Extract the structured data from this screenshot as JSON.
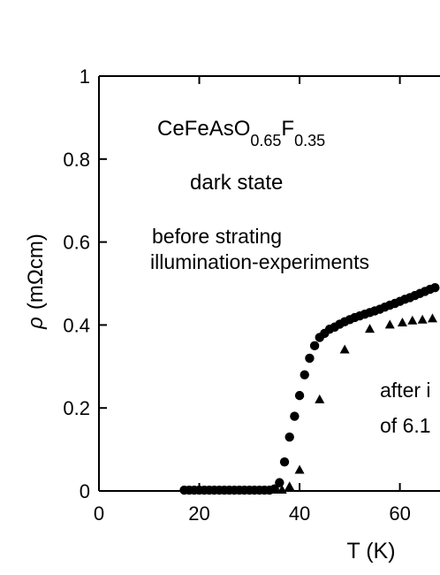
{
  "chart_data": {
    "type": "scatter",
    "xlabel": "T (K)",
    "ylabel_symbol": "ρ",
    "ylabel_unit": "(mΩcm)",
    "xlim": [
      0,
      68
    ],
    "ylim": [
      0,
      1
    ],
    "x_ticks": [
      0,
      20,
      40,
      60
    ],
    "x_tick_labels": [
      "0",
      "20",
      "40",
      "60"
    ],
    "y_ticks": [
      0,
      0.2,
      0.4,
      0.6,
      0.8,
      1
    ],
    "y_tick_labels": [
      "0",
      "0.2",
      "0.4",
      "0.6",
      "0.8",
      "1"
    ],
    "grid": false,
    "annotations": {
      "compound_base": "CeFeAsO",
      "compound_sub1": "0.65",
      "compound_f": "F",
      "compound_sub2": "0.35",
      "state": "dark state",
      "before_line1": "before strating",
      "before_line2": "illumination-experiments",
      "after_line1": "after i",
      "after_line2": "of  6.1"
    },
    "series": [
      {
        "marker": "circle",
        "x": [
          17,
          18,
          19,
          20,
          21,
          22,
          23,
          24,
          25,
          26,
          27,
          28,
          29,
          30,
          31,
          32,
          33,
          34,
          35,
          36,
          37,
          38,
          39,
          40,
          41,
          42,
          43,
          44,
          45,
          46,
          47,
          48,
          49,
          50,
          51,
          52,
          53,
          54,
          55,
          56,
          57,
          58,
          59,
          60,
          61,
          62,
          63,
          64,
          65,
          66,
          67
        ],
        "y": [
          0.002,
          0.002,
          0.002,
          0.002,
          0.002,
          0.002,
          0.002,
          0.002,
          0.002,
          0.002,
          0.002,
          0.002,
          0.002,
          0.002,
          0.002,
          0.002,
          0.002,
          0.002,
          0.005,
          0.02,
          0.07,
          0.13,
          0.18,
          0.23,
          0.28,
          0.32,
          0.35,
          0.37,
          0.38,
          0.39,
          0.395,
          0.402,
          0.408,
          0.413,
          0.418,
          0.422,
          0.426,
          0.43,
          0.434,
          0.438,
          0.443,
          0.448,
          0.452,
          0.457,
          0.462,
          0.466,
          0.471,
          0.476,
          0.481,
          0.486,
          0.49
        ]
      },
      {
        "marker": "triangle",
        "x": [
          35,
          36.5,
          38,
          40,
          44,
          49,
          54,
          58,
          60.5,
          62.5,
          64.5,
          66.5
        ],
        "y": [
          0.002,
          0.002,
          0.01,
          0.05,
          0.22,
          0.34,
          0.39,
          0.4,
          0.405,
          0.41,
          0.412,
          0.415
        ]
      }
    ]
  }
}
